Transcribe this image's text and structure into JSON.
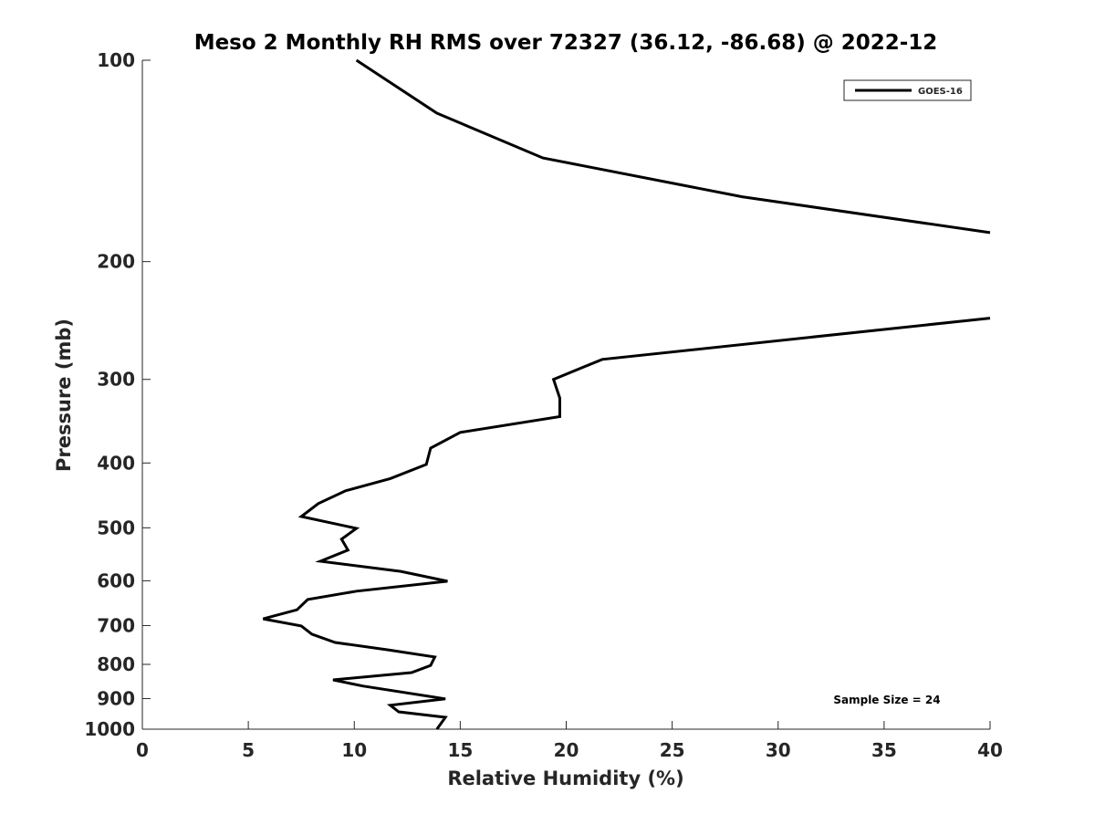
{
  "chart_data": {
    "type": "line",
    "title": "Meso 2 Monthly RH RMS over 72327 (36.12, -86.68) @ 2022-12",
    "xlabel": "Relative Humidity (%)",
    "ylabel": "Pressure (mb)",
    "xlim": [
      0,
      40
    ],
    "ylim": [
      100,
      1000
    ],
    "yscale": "log",
    "y_reversed": true,
    "xticks": [
      "0",
      "5",
      "10",
      "15",
      "20",
      "25",
      "30",
      "35",
      "40"
    ],
    "yticks": [
      "100",
      "200",
      "300",
      "400",
      "500",
      "600",
      "700",
      "800",
      "900",
      "1000"
    ],
    "grid": false,
    "legend": {
      "placement": "top-right",
      "entries": [
        "GOES-16"
      ]
    },
    "annotation": "Sample Size = 24",
    "series": [
      {
        "name": "GOES-16",
        "color": "#000000",
        "points": [
          [
            10.1,
            100
          ],
          [
            13.9,
            120
          ],
          [
            18.9,
            140
          ],
          [
            28.3,
            160
          ],
          [
            40,
            181
          ],
          null,
          [
            40,
            243
          ],
          [
            21.7,
            280
          ],
          [
            19.4,
            300
          ],
          [
            19.7,
            320
          ],
          [
            19.7,
            341
          ],
          [
            15.0,
            360
          ],
          [
            13.6,
            380
          ],
          [
            13.4,
            402
          ],
          [
            11.7,
            422
          ],
          [
            9.6,
            440
          ],
          [
            8.3,
            460
          ],
          [
            7.5,
            481
          ],
          [
            10.1,
            501
          ],
          [
            9.4,
            520
          ],
          [
            9.7,
            540
          ],
          [
            8.4,
            561
          ],
          [
            12.2,
            581
          ],
          [
            14.4,
            601
          ],
          [
            10.1,
            622
          ],
          [
            7.8,
            640
          ],
          [
            7.3,
            663
          ],
          [
            5.7,
            684
          ],
          [
            7.5,
            701
          ],
          [
            8.0,
            721
          ],
          [
            9.1,
            742
          ],
          [
            11.6,
            761
          ],
          [
            13.8,
            780
          ],
          [
            13.6,
            803
          ],
          [
            12.7,
            823
          ],
          [
            9.0,
            844
          ],
          [
            10.4,
            862
          ],
          [
            14.3,
            901
          ],
          [
            11.7,
            921
          ],
          [
            12.1,
            942
          ],
          [
            14.3,
            960
          ],
          [
            13.9,
            1000
          ]
        ]
      }
    ]
  }
}
